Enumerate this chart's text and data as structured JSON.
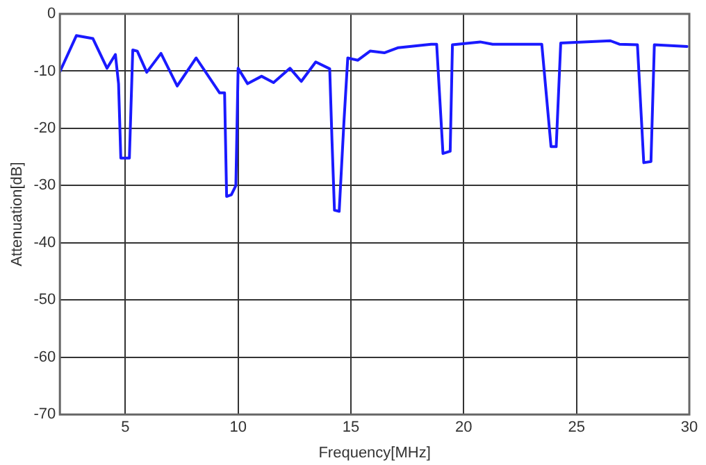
{
  "chart_data": {
    "type": "line",
    "xlabel": "Frequency[MHz]",
    "ylabel": "Attenuation[dB]",
    "xlim": [
      2.1,
      30
    ],
    "ylim": [
      -70,
      0
    ],
    "xticks": [
      5,
      10,
      15,
      20,
      25,
      30
    ],
    "yticks": [
      -70,
      -60,
      -50,
      -40,
      -30,
      -20,
      -10,
      0
    ],
    "grid": true,
    "legend": false,
    "marker": "none",
    "line_style": "solid",
    "series": [
      {
        "color": "#1a1aff",
        "x": [
          2.1,
          2.83,
          3.56,
          4.19,
          4.56,
          4.7,
          4.8,
          5.18,
          5.33,
          5.53,
          5.95,
          6.58,
          7.3,
          8.14,
          9.18,
          9.4,
          9.49,
          9.7,
          9.9,
          10.0,
          10.42,
          11.04,
          11.57,
          12.3,
          12.8,
          13.44,
          14.06,
          14.16,
          14.27,
          14.48,
          14.69,
          14.86,
          15.3,
          15.85,
          16.48,
          17.1,
          18.56,
          18.8,
          19.08,
          19.4,
          19.5,
          20.73,
          21.28,
          23.46,
          23.87,
          24.1,
          24.3,
          26.5,
          26.9,
          27.7,
          27.98,
          28.3,
          28.45,
          29.9
        ],
        "values": [
          -10.1,
          -3.8,
          -4.3,
          -9.5,
          -7.1,
          -12.2,
          -25.2,
          -25.2,
          -6.3,
          -6.5,
          -10.2,
          -6.9,
          -12.6,
          -7.7,
          -13.8,
          -13.8,
          -31.9,
          -31.6,
          -30,
          -9.5,
          -12.2,
          -10.9,
          -12,
          -9.5,
          -11.8,
          -8.4,
          -9.6,
          -22,
          -34.3,
          -34.5,
          -18.9,
          -7.7,
          -8.1,
          -6.5,
          -6.8,
          -5.9,
          -5.3,
          -5.3,
          -24.4,
          -24,
          -5.4,
          -4.9,
          -5.3,
          -5.3,
          -23.2,
          -23.2,
          -5.1,
          -4.7,
          -5.3,
          -5.4,
          -26,
          -25.8,
          -5.4,
          -5.7
        ]
      }
    ]
  }
}
